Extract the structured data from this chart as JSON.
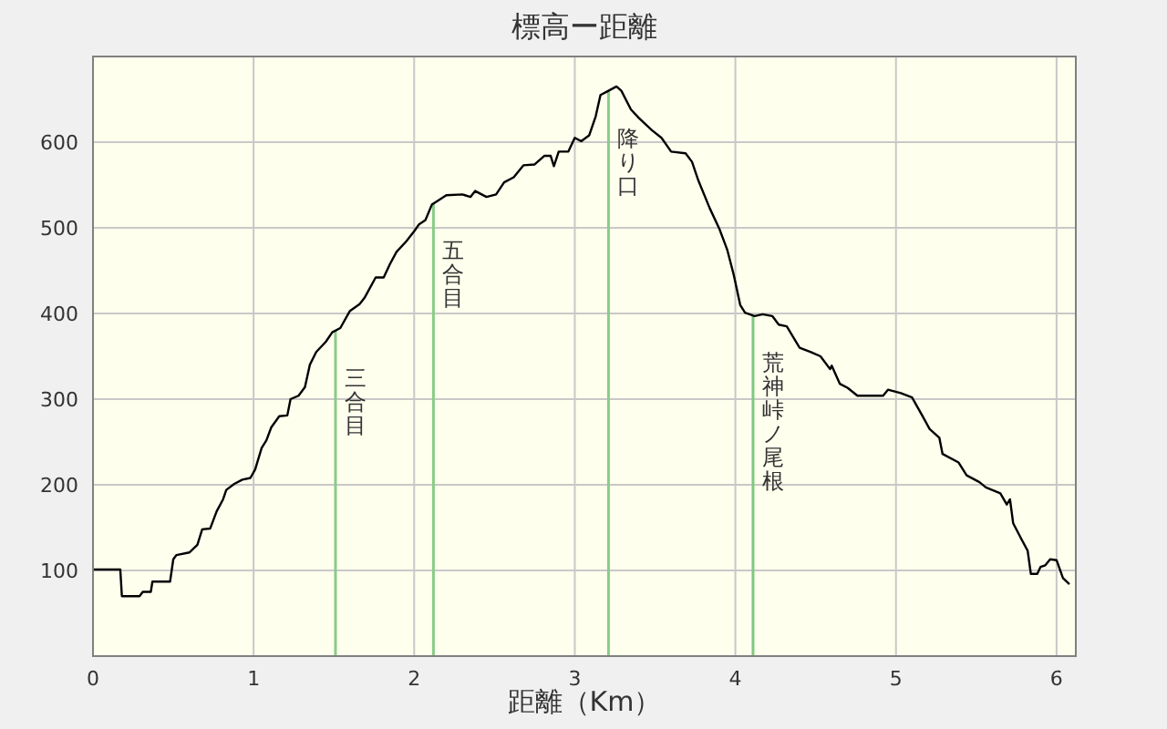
{
  "chart_data": {
    "type": "line",
    "title": "標高ー距離",
    "xlabel": "距離（Km）",
    "grid": true,
    "xlim": [
      0,
      6.12
    ],
    "ylim": [
      0,
      700
    ],
    "xticks": [
      0,
      1,
      2,
      3,
      4,
      5,
      6
    ],
    "yticks": [
      {
        "value": 0,
        "label": null
      },
      100,
      200,
      300,
      400,
      500,
      600
    ],
    "series": [
      {
        "color": "#000000",
        "x": [
          0,
          0.17,
          0.18,
          0.29,
          0.31,
          0.36,
          0.37,
          0.48,
          0.5,
          0.52,
          0.6,
          0.65,
          0.68,
          0.73,
          0.77,
          0.81,
          0.83,
          0.88,
          0.93,
          0.98,
          1.01,
          1.05,
          1.08,
          1.11,
          1.16,
          1.21,
          1.23,
          1.28,
          1.32,
          1.35,
          1.39,
          1.45,
          1.49,
          1.54,
          1.6,
          1.66,
          1.69,
          1.76,
          1.81,
          1.85,
          1.89,
          1.95,
          2.0,
          2.03,
          2.07,
          2.11,
          2.15,
          2.2,
          2.3,
          2.35,
          2.38,
          2.45,
          2.51,
          2.56,
          2.62,
          2.68,
          2.75,
          2.81,
          2.85,
          2.87,
          2.9,
          2.96,
          3.0,
          3.04,
          3.09,
          3.13,
          3.16,
          3.21,
          3.26,
          3.29,
          3.35,
          3.4,
          3.48,
          3.54,
          3.6,
          3.69,
          3.73,
          3.77,
          3.84,
          3.9,
          3.95,
          3.99,
          4.03,
          4.06,
          4.12,
          4.17,
          4.23,
          4.27,
          4.32,
          4.4,
          4.47,
          4.53,
          4.59,
          4.6,
          4.65,
          4.7,
          4.76,
          4.92,
          4.95,
          5.03,
          5.1,
          5.16,
          5.21,
          5.27,
          5.29,
          5.39,
          5.44,
          5.52,
          5.56,
          5.65,
          5.69,
          5.71,
          5.73,
          5.78,
          5.82,
          5.84,
          5.88,
          5.9,
          5.93,
          5.96,
          6.0,
          6.04,
          6.08
        ],
        "values": [
          101,
          101,
          70,
          70,
          75,
          75,
          87,
          87,
          113,
          118,
          121,
          130,
          148,
          149,
          169,
          183,
          194,
          201,
          206,
          208,
          218,
          243,
          252,
          267,
          280,
          281,
          300,
          304,
          314,
          340,
          355,
          367,
          378,
          383,
          403,
          411,
          418,
          442,
          442,
          458,
          472,
          484,
          496,
          504,
          509,
          527,
          532,
          538,
          539,
          536,
          543,
          536,
          539,
          553,
          559,
          573,
          574,
          584,
          584,
          572,
          589,
          589,
          605,
          601,
          608,
          630,
          655,
          660,
          665,
          660,
          638,
          628,
          614,
          605,
          589,
          587,
          577,
          555,
          523,
          499,
          474,
          445,
          410,
          401,
          397,
          399,
          397,
          387,
          385,
          360,
          355,
          350,
          335,
          339,
          318,
          313,
          304,
          304,
          311,
          307,
          302,
          282,
          265,
          255,
          236,
          226,
          211,
          203,
          197,
          190,
          177,
          183,
          155,
          137,
          123,
          96,
          96,
          104,
          106,
          113,
          112,
          91,
          84
        ]
      }
    ],
    "ref_lines": [
      {
        "axis": "x",
        "value": 1.51,
        "label": "三合目",
        "color": "#88cc88"
      },
      {
        "axis": "x",
        "value": 2.12,
        "label": "五合目",
        "color": "#88cc88"
      },
      {
        "axis": "x",
        "value": 3.21,
        "label": "降り口",
        "color": "#88cc88"
      },
      {
        "axis": "x",
        "value": 4.11,
        "label": "荒神峠ノ尾根",
        "color": "#80c880"
      }
    ]
  }
}
